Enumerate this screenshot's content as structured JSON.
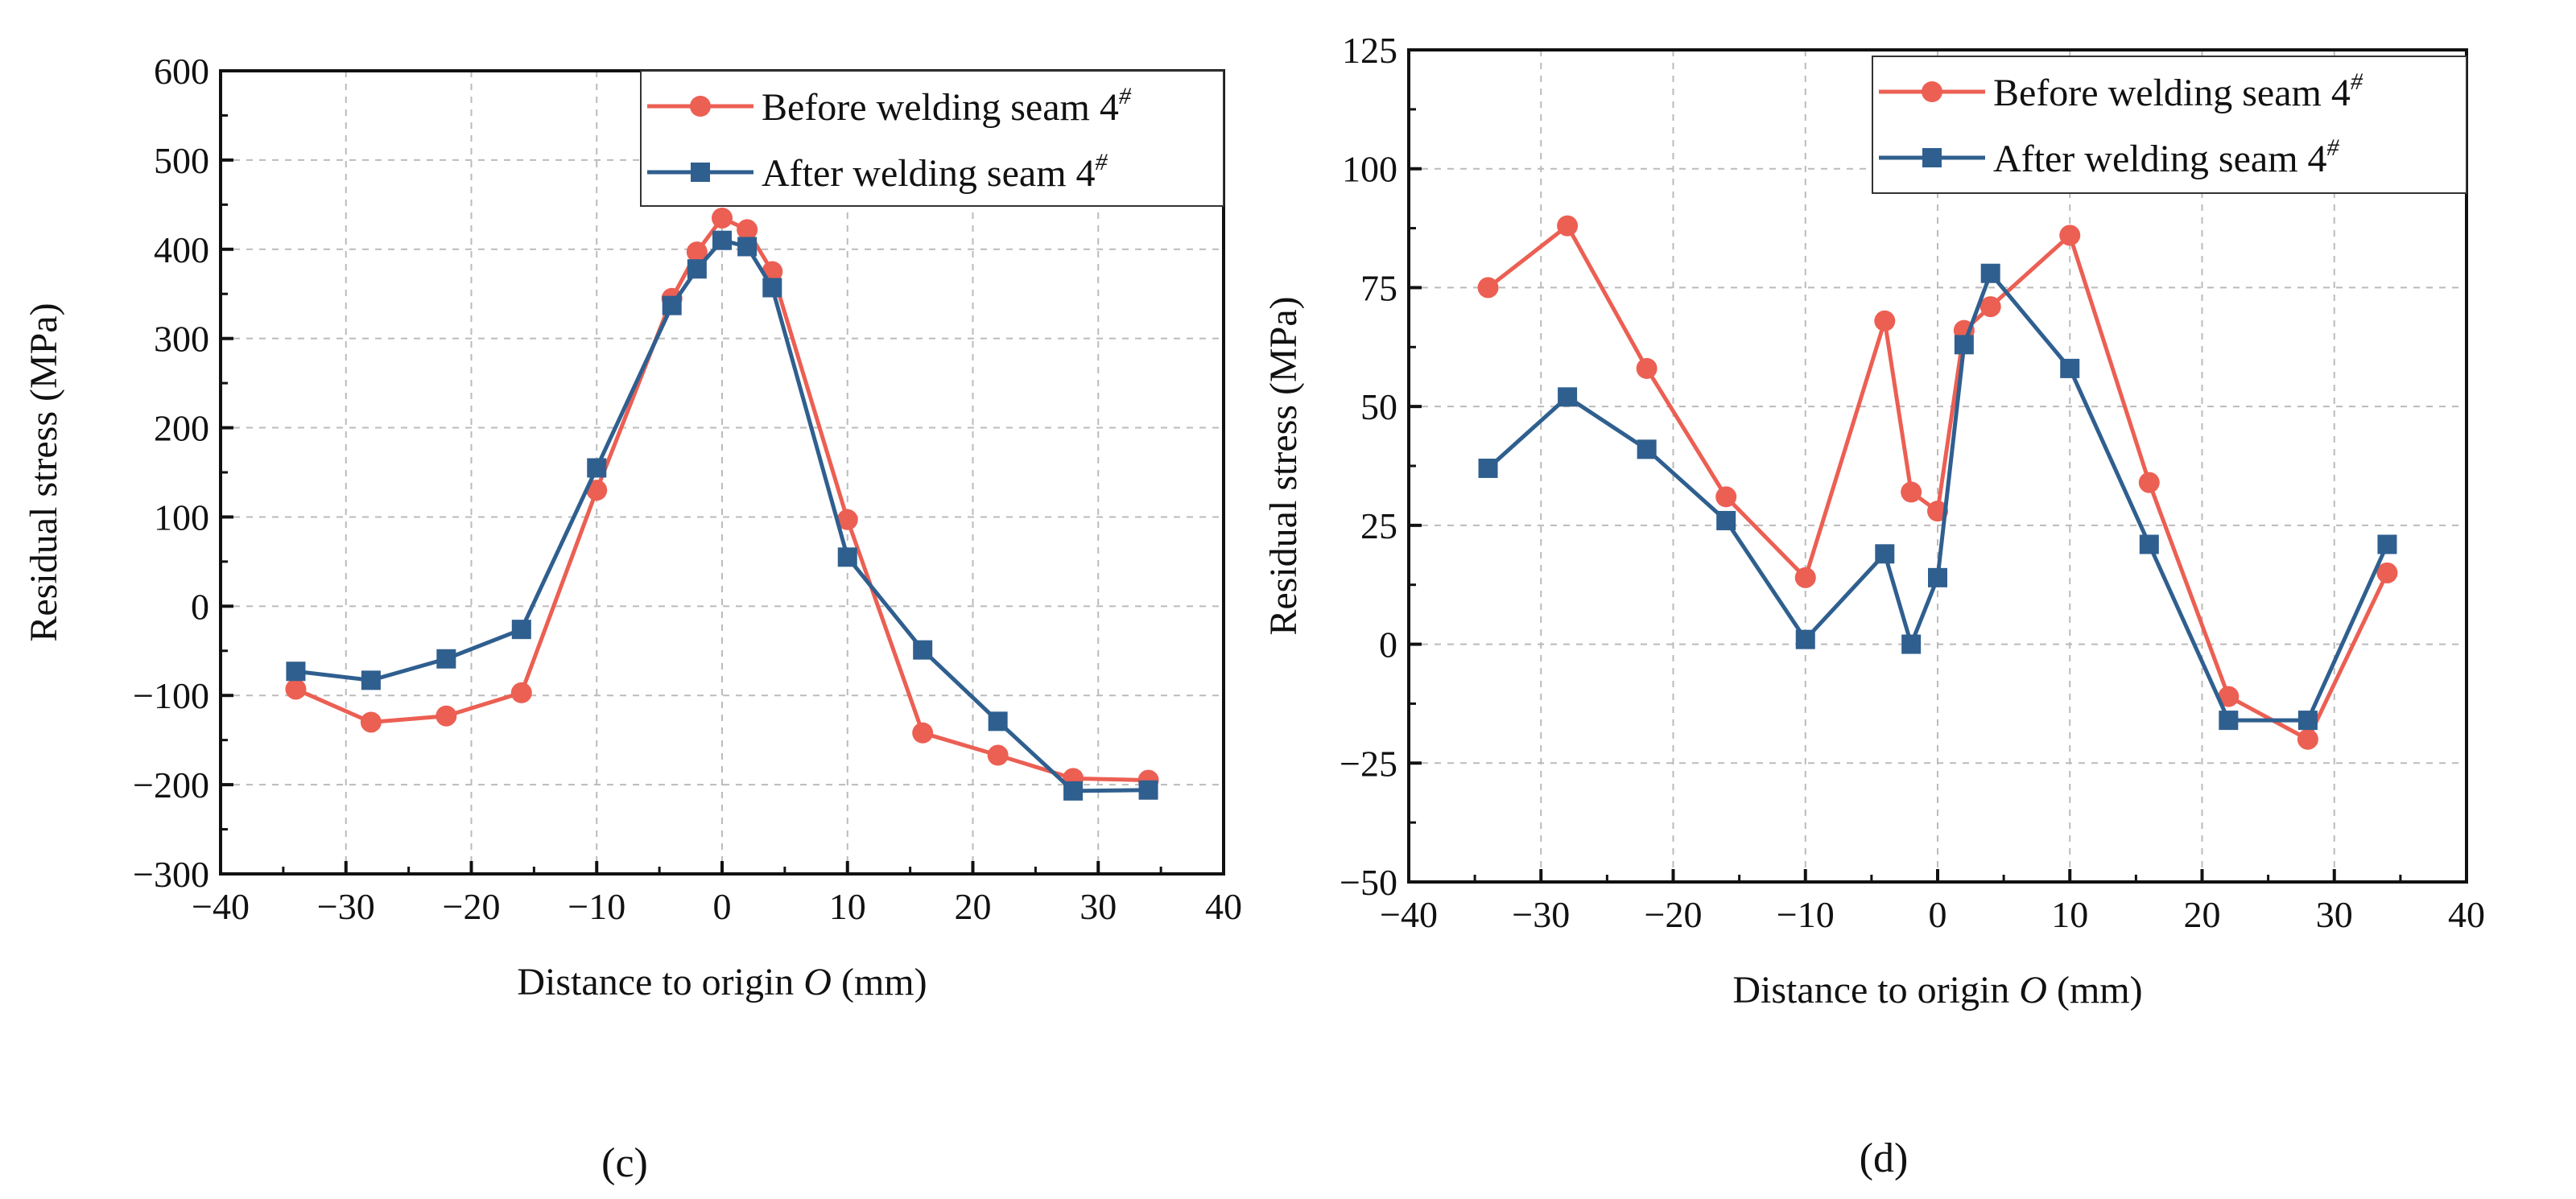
{
  "colors": {
    "before": "#ec5f53",
    "after": "#2f5f8f"
  },
  "chart_data": [
    {
      "type": "line",
      "caption": "(c)",
      "xlabel_pre": "Distance to origin ",
      "xlabel_italic": "O",
      "xlabel_post": " (mm)",
      "ylabel": "Residual stress (MPa)",
      "xlim": [
        -40,
        40
      ],
      "ylim": [
        -300,
        600
      ],
      "xticks": [
        -40,
        -30,
        -20,
        -10,
        0,
        10,
        20,
        30,
        40
      ],
      "xtick_labels": [
        "−40",
        "−30",
        "−20",
        "−10",
        "0",
        "10",
        "20",
        "30",
        "40"
      ],
      "yticks": [
        -300,
        -200,
        -100,
        0,
        100,
        200,
        300,
        400,
        500,
        600
      ],
      "ytick_labels": [
        "−300",
        "−200",
        "−100",
        "0",
        "100",
        "200",
        "300",
        "400",
        "500",
        "600"
      ],
      "grid": true,
      "legend_position": "top-right",
      "x": [
        -34,
        -28,
        -22,
        -16,
        -10,
        -4,
        -2,
        0,
        2,
        4,
        10,
        16,
        22,
        28,
        34
      ],
      "series": [
        {
          "name": "Before welding seam 4",
          "sup": "#",
          "marker": "circle",
          "values": [
            -93,
            -130,
            -123,
            -97,
            130,
            345,
            397,
            435,
            422,
            375,
            97,
            -142,
            -167,
            -193,
            -195
          ]
        },
        {
          "name": "After welding seam 4",
          "sup": "#",
          "marker": "square",
          "values": [
            -73,
            -83,
            -59,
            -26,
            155,
            337,
            378,
            410,
            403,
            357,
            55,
            -49,
            -129,
            -207,
            -206
          ]
        }
      ]
    },
    {
      "type": "line",
      "caption": "(d)",
      "xlabel_pre": "Distance to origin ",
      "xlabel_italic": "O",
      "xlabel_post": " (mm)",
      "ylabel": "Residual stress (MPa)",
      "xlim": [
        -40,
        40
      ],
      "ylim": [
        -50,
        125
      ],
      "xticks": [
        -40,
        -30,
        -20,
        -10,
        0,
        10,
        20,
        30,
        40
      ],
      "xtick_labels": [
        "−40",
        "−30",
        "−20",
        "−10",
        "0",
        "10",
        "20",
        "30",
        "40"
      ],
      "yticks": [
        -50,
        -25,
        0,
        25,
        50,
        75,
        100,
        125
      ],
      "ytick_labels": [
        "−50",
        "−25",
        "0",
        "25",
        "50",
        "75",
        "100",
        "125"
      ],
      "grid": true,
      "legend_position": "top-right",
      "x": [
        -34,
        -28,
        -22,
        -16,
        -10,
        -4,
        -2,
        0,
        2,
        4,
        10,
        16,
        22,
        28,
        34
      ],
      "series": [
        {
          "name": "Before welding seam 4",
          "sup": "#",
          "marker": "circle",
          "values": [
            75,
            88,
            58,
            31,
            14,
            68,
            32,
            28,
            66,
            71,
            86,
            34,
            -11,
            -20,
            15
          ]
        },
        {
          "name": "After welding seam 4",
          "sup": "#",
          "marker": "square",
          "values": [
            37,
            52,
            41,
            26,
            1,
            19,
            0,
            14,
            63,
            78,
            58,
            21,
            -16,
            -16,
            21
          ]
        }
      ]
    }
  ]
}
